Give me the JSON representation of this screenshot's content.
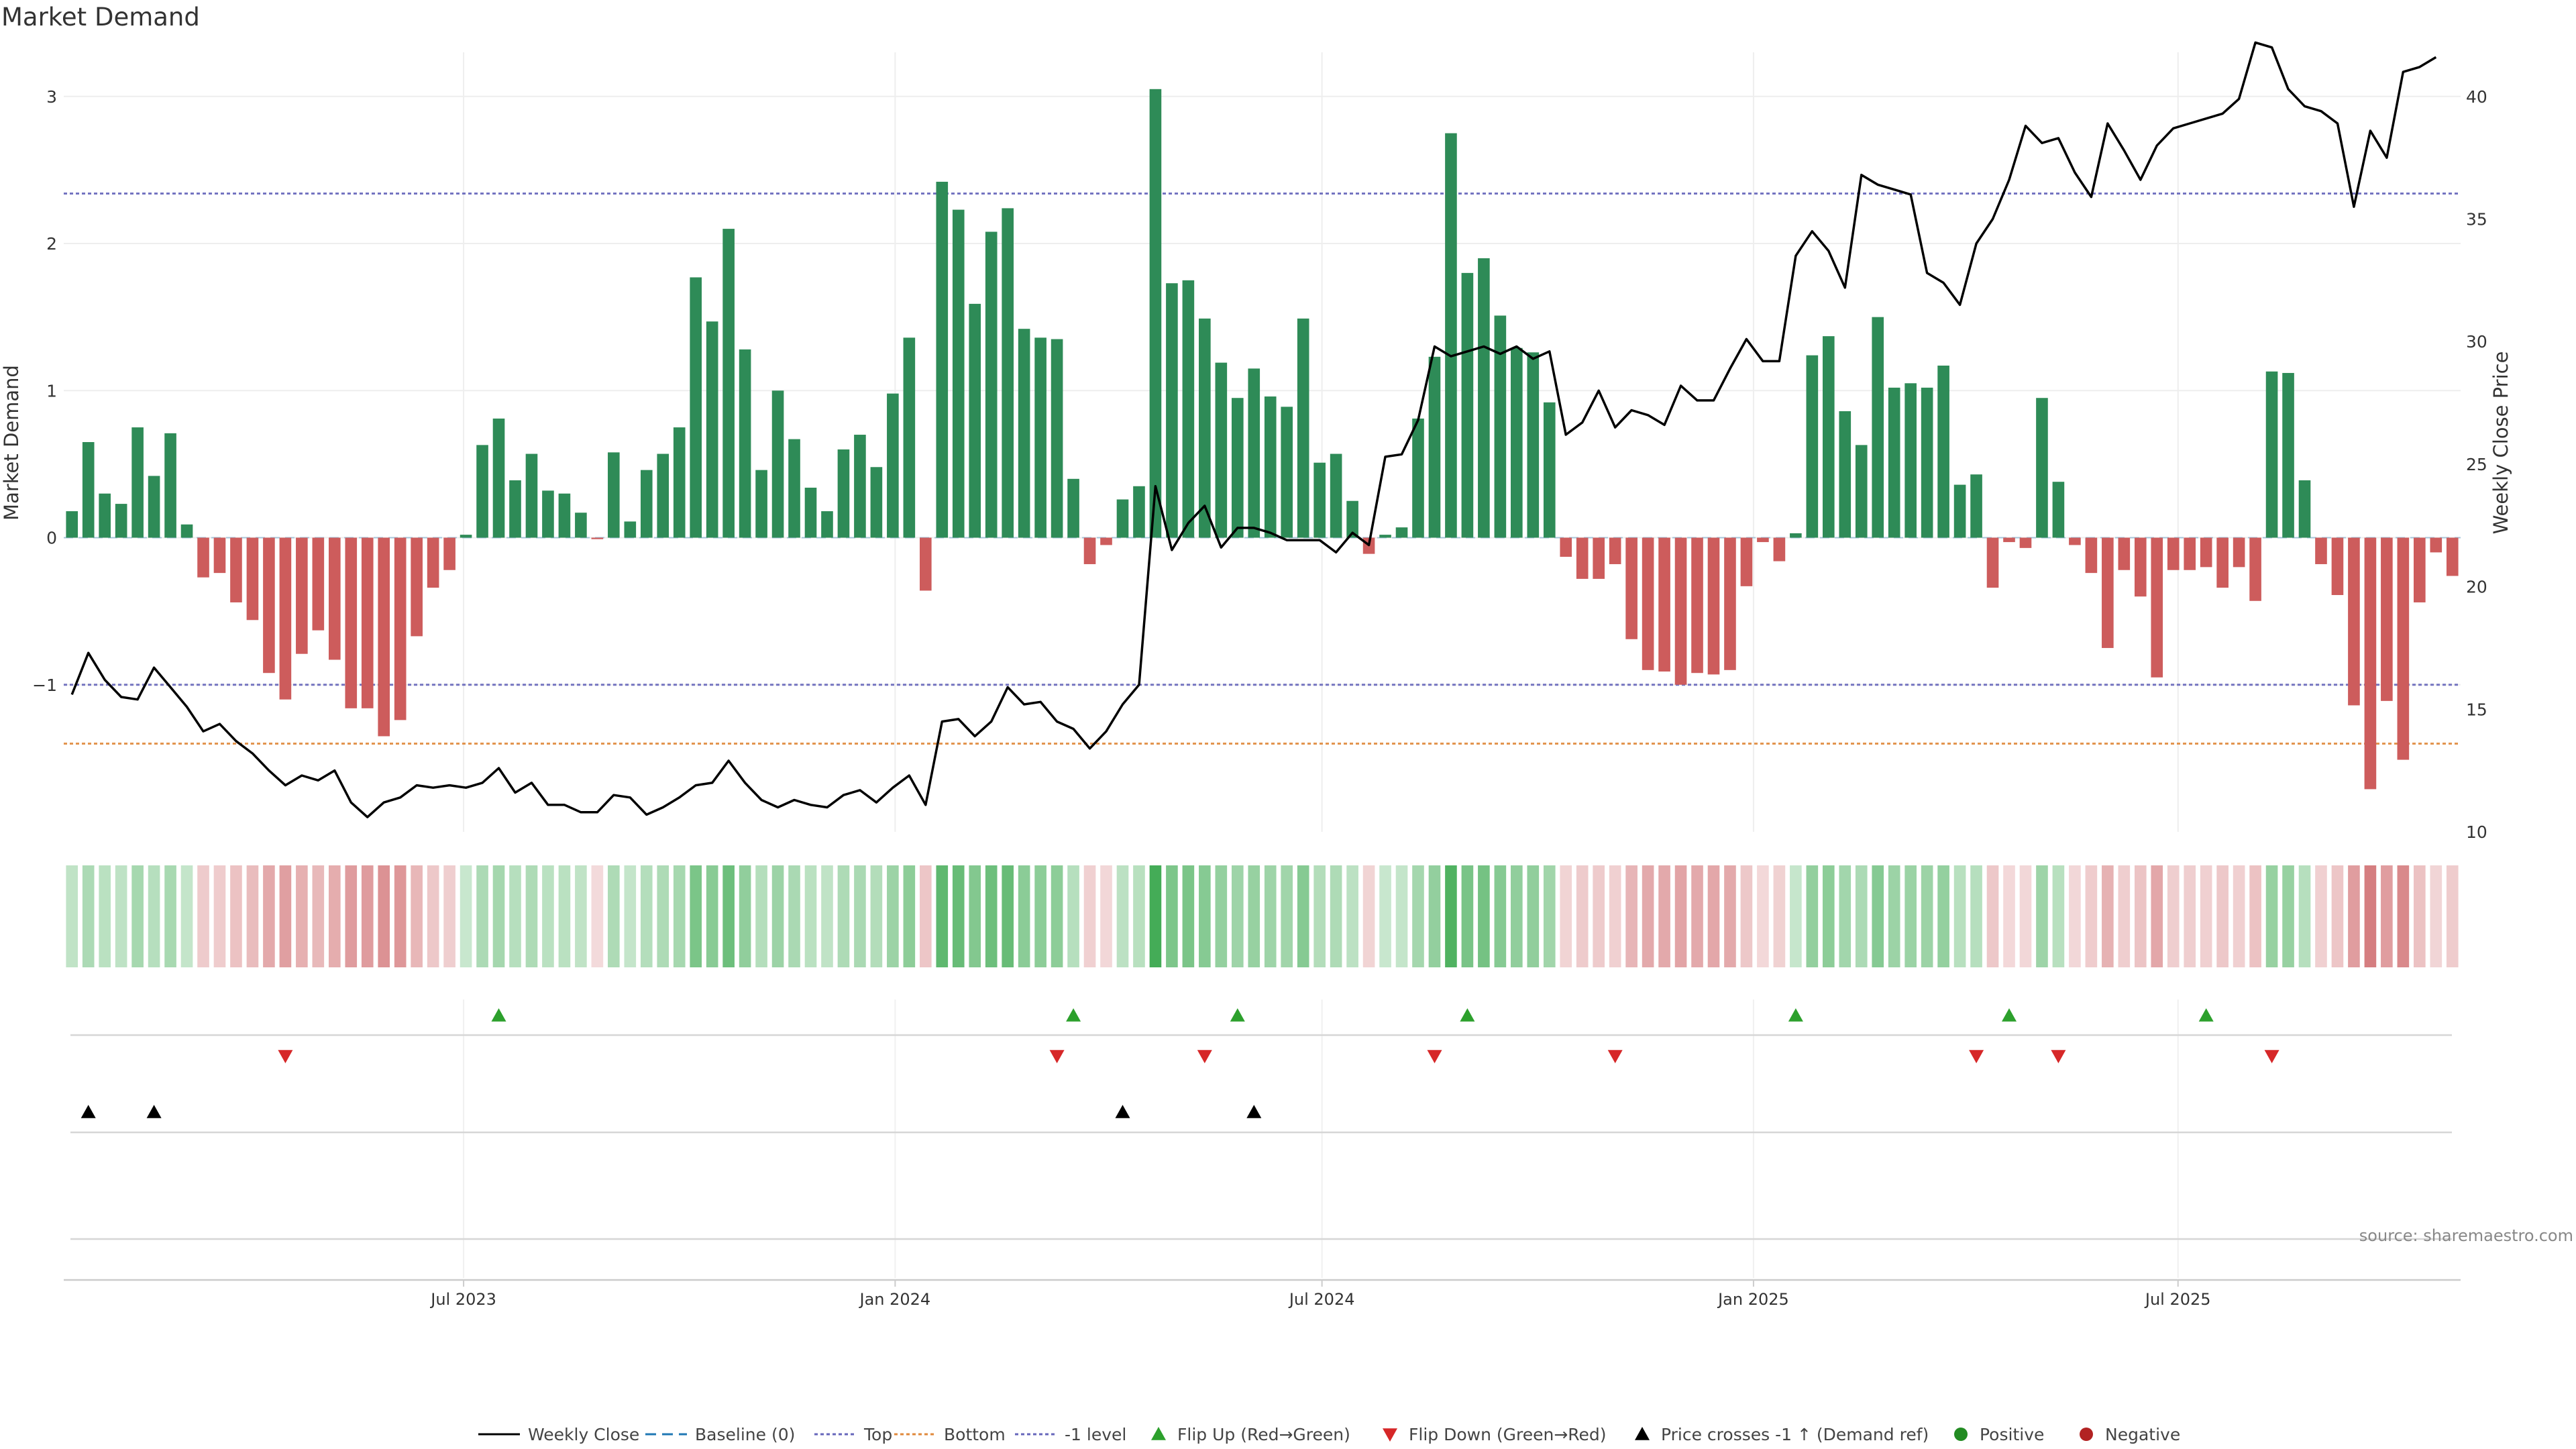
{
  "chart_data": {
    "type": "bar",
    "title": "Market Demand",
    "ylabel_left": "Market Demand",
    "ylabel_right": "Weekly Close Price",
    "source_note": "source: sharemaestro.com",
    "left_axis": {
      "range": [
        -2,
        3.3
      ],
      "ticks": [
        -1,
        0,
        1,
        2,
        3
      ],
      "tick_labels": [
        "−1",
        "0",
        "1",
        "2",
        "3"
      ]
    },
    "right_axis": {
      "range": [
        10,
        41.8
      ],
      "ticks": [
        10,
        15,
        20,
        25,
        30,
        35,
        40
      ],
      "tick_labels": [
        "10",
        "15",
        "20",
        "25",
        "30",
        "35",
        "40"
      ]
    },
    "x_axis": {
      "start": "2023-01-15",
      "step_days": 7,
      "ticks": [
        {
          "date": "2023-07-01",
          "label": "Jul 2023"
        },
        {
          "date": "2024-01-01",
          "label": "Jan 2024"
        },
        {
          "date": "2024-07-01",
          "label": "Jul 2024"
        },
        {
          "date": "2025-01-01",
          "label": "Jan 2025"
        },
        {
          "date": "2025-07-01",
          "label": "Jul 2025"
        }
      ]
    },
    "reference_lines": [
      {
        "name": "Top",
        "value": 2.34,
        "color": "#6666bb"
      },
      {
        "name": "-1 level",
        "value": -1.0,
        "color": "#6666bb"
      },
      {
        "name": "Bottom",
        "value": -1.4,
        "color": "#e08a3c"
      },
      {
        "name": "Baseline (0)",
        "value": 0,
        "color": "#1f77b4"
      }
    ],
    "demand": [
      0.18,
      0.65,
      0.3,
      0.23,
      0.75,
      0.42,
      0.71,
      0.09,
      -0.27,
      -0.24,
      -0.44,
      -0.56,
      -0.92,
      -1.1,
      -0.79,
      -0.63,
      -0.83,
      -1.16,
      -1.16,
      -1.35,
      -1.24,
      -0.67,
      -0.34,
      -0.22,
      0.02,
      0.63,
      0.81,
      0.39,
      0.57,
      0.32,
      0.3,
      0.17,
      -0.01,
      0.58,
      0.11,
      0.46,
      0.57,
      0.75,
      1.77,
      1.47,
      2.1,
      1.28,
      0.46,
      1.0,
      0.67,
      0.34,
      0.18,
      0.6,
      0.7,
      0.48,
      0.98,
      1.36,
      -0.36,
      2.42,
      2.23,
      1.59,
      2.08,
      2.24,
      1.42,
      1.36,
      1.35,
      0.4,
      -0.18,
      -0.05,
      0.26,
      0.35,
      3.05,
      1.73,
      1.75,
      1.49,
      1.19,
      0.95,
      1.15,
      0.96,
      0.89,
      1.49,
      0.51,
      0.57,
      0.25,
      -0.11,
      0.02,
      0.07,
      0.81,
      1.23,
      2.75,
      1.8,
      1.9,
      1.51,
      1.29,
      1.26,
      0.92,
      -0.13,
      -0.28,
      -0.28,
      -0.18,
      -0.69,
      -0.9,
      -0.91,
      -1.0,
      -0.92,
      -0.93,
      -0.9,
      -0.33,
      -0.03,
      -0.16,
      0.03,
      1.24,
      1.37,
      0.86,
      0.63,
      1.5,
      1.02,
      1.05,
      1.02,
      1.17,
      0.36,
      0.43,
      -0.34,
      -0.03,
      -0.07,
      0.95,
      0.38,
      -0.05,
      -0.24,
      -0.75,
      -0.22,
      -0.4,
      -0.95,
      -0.22,
      -0.22,
      -0.2,
      -0.34,
      -0.2,
      -0.43,
      1.13,
      1.12,
      0.39,
      -0.18,
      -0.39,
      -1.14,
      -1.71,
      -1.11,
      -1.51,
      -0.44,
      -0.1,
      -0.26
    ],
    "weekly_close": [
      15.6,
      17.3,
      16.2,
      15.5,
      15.4,
      16.7,
      15.9,
      15.1,
      14.1,
      14.4,
      13.7,
      13.2,
      12.5,
      11.9,
      12.3,
      12.1,
      12.5,
      11.2,
      10.6,
      11.2,
      11.4,
      11.9,
      11.8,
      11.9,
      11.8,
      12.0,
      12.6,
      11.6,
      12.0,
      11.1,
      11.1,
      10.8,
      10.8,
      11.5,
      11.4,
      10.7,
      11.0,
      11.4,
      11.9,
      12.0,
      12.9,
      12.0,
      11.3,
      11.0,
      11.3,
      11.1,
      11.0,
      11.5,
      11.7,
      11.2,
      11.8,
      12.3,
      11.1,
      14.5,
      14.6,
      13.9,
      14.5,
      15.9,
      15.2,
      15.3,
      14.5,
      14.2,
      13.4,
      14.1,
      15.2,
      16.0,
      24.1,
      21.5,
      22.6,
      23.3,
      21.6,
      22.4,
      22.4,
      22.2,
      21.9,
      21.9,
      21.9,
      21.4,
      22.2,
      21.7,
      25.3,
      25.4,
      26.8,
      29.8,
      29.4,
      29.6,
      29.8,
      29.5,
      29.8,
      29.3,
      29.6,
      26.2,
      26.7,
      28.0,
      26.5,
      27.2,
      27.0,
      26.6,
      28.2,
      27.6,
      27.6,
      28.9,
      30.1,
      29.2,
      29.2,
      33.5,
      34.5,
      33.7,
      32.2,
      36.8,
      36.4,
      36.2,
      36.0,
      32.8,
      32.4,
      31.5,
      34.0,
      35.0,
      36.6,
      38.8,
      38.1,
      38.3,
      36.9,
      35.9,
      38.9,
      37.8,
      36.6,
      38.0,
      38.7,
      38.9,
      39.1,
      39.3,
      39.9,
      42.2,
      42.0,
      40.3,
      39.6,
      39.4,
      38.9,
      35.5,
      38.6,
      37.5,
      41.0,
      41.2,
      41.6
    ],
    "signals": {
      "flip_up": [
        "2023-07-16",
        "2024-03-17",
        "2024-05-26",
        "2024-09-01",
        "2025-01-19",
        "2025-04-20",
        "2025-07-13"
      ],
      "flip_down": [
        "2023-04-16",
        "2024-03-10",
        "2024-05-12",
        "2024-08-18",
        "2024-11-03",
        "2025-04-06",
        "2025-05-11",
        "2025-08-10"
      ],
      "price_cross": [
        "2023-01-22",
        "2023-02-19",
        "2024-04-07",
        "2024-06-02"
      ]
    },
    "legend": [
      "Weekly Close",
      "Baseline (0)",
      "Top",
      "Bottom",
      "-1 level",
      "Flip Up (Red→Green)",
      "Flip Down (Green→Red)",
      "Price crosses -1 ↑ (Demand ref)",
      "Positive",
      "Negative"
    ],
    "legend_placement": "bottom",
    "colors": {
      "positive": "#2e8b57",
      "negative": "#cd5c5c",
      "price": "#000000",
      "flip_up": "#2ca02c",
      "flip_down": "#d62728",
      "cross": "#000000",
      "heat_pos": "#3aa84e",
      "heat_neg": "#c9575a",
      "legend_positive_dot": "#228b22",
      "legend_negative_dot": "#b22222"
    }
  }
}
